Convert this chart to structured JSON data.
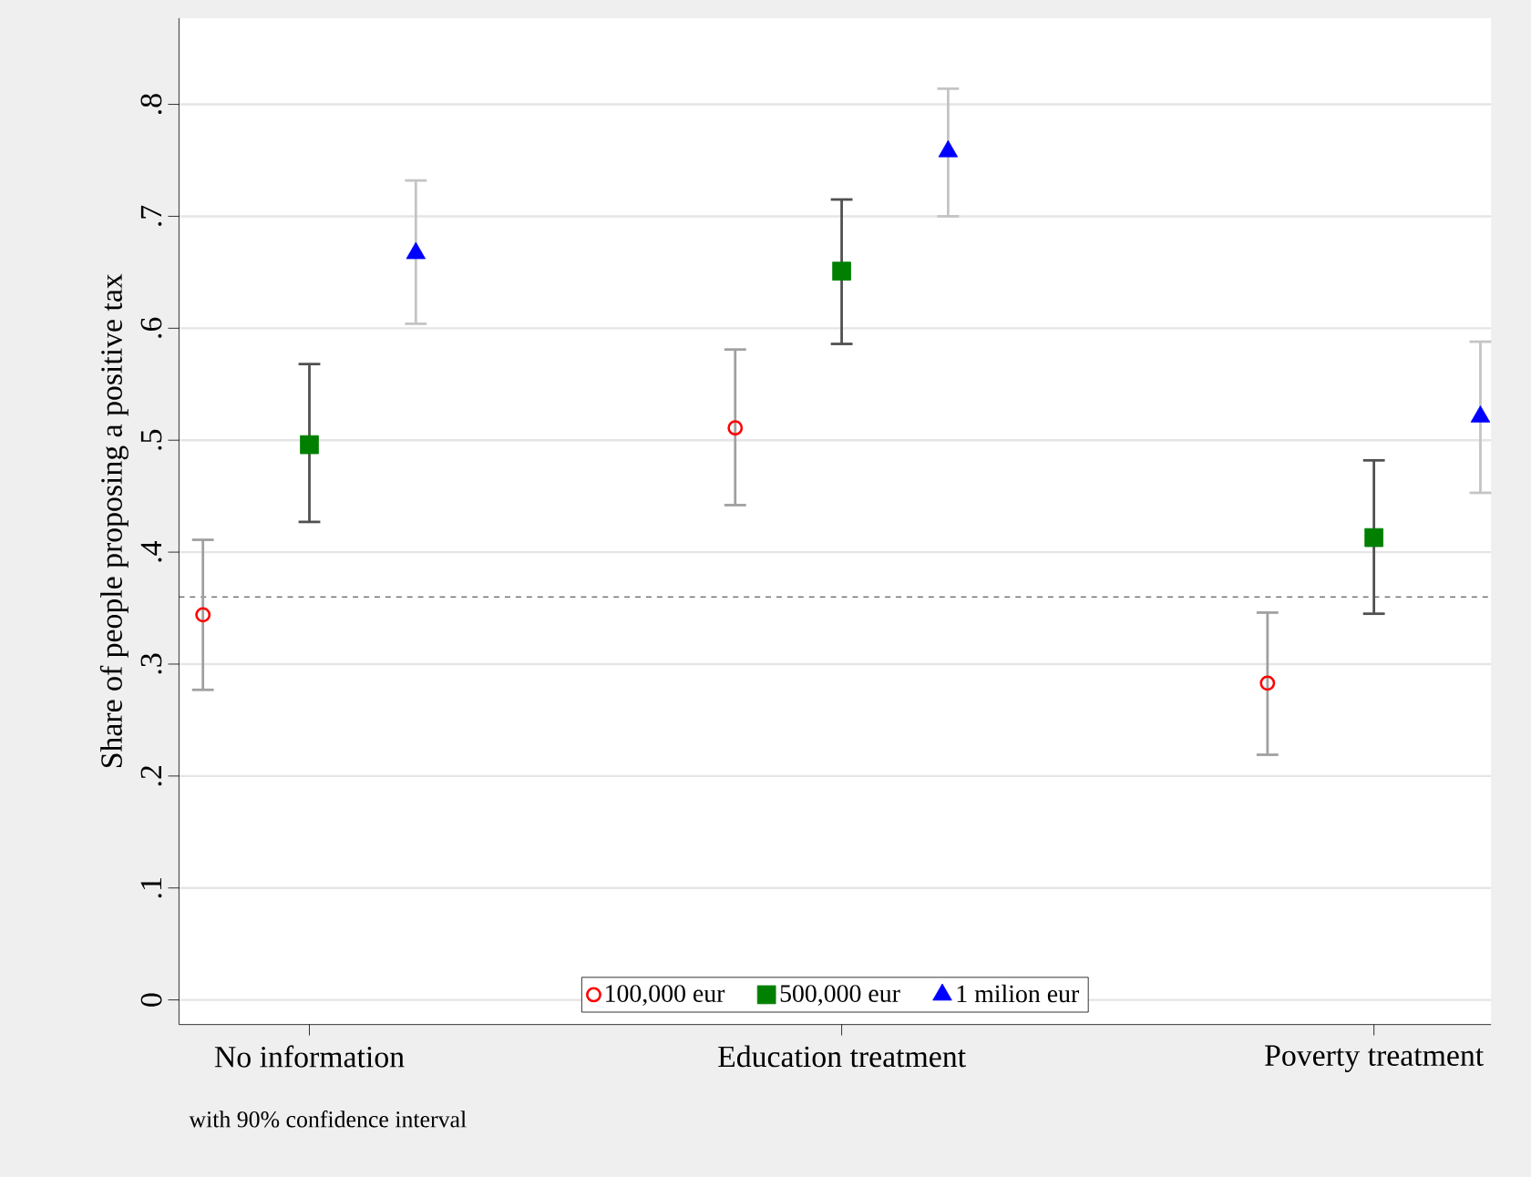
{
  "chart_data": {
    "type": "scatter",
    "ylabel": "Share of people proposing a positive tax",
    "categories": [
      "No information",
      "Education treatment",
      "Poverty treatment"
    ],
    "series": [
      {
        "name": "100,000 eur",
        "color": "#ff0000",
        "marker": "circle",
        "values": [
          0.344,
          0.511,
          0.283
        ],
        "errors": [
          [
            0.277,
            0.411
          ],
          [
            0.442,
            0.581
          ],
          [
            0.219,
            0.346
          ]
        ]
      },
      {
        "name": "500,000 eur",
        "color": "#007f00",
        "marker": "square",
        "values": [
          0.496,
          0.651,
          0.413
        ],
        "errors": [
          [
            0.427,
            0.568
          ],
          [
            0.586,
            0.715
          ],
          [
            0.345,
            0.482
          ]
        ]
      },
      {
        "name": "1 milion eur",
        "color": "#0000ff",
        "marker": "triangle",
        "values": [
          0.667,
          0.758,
          0.521
        ],
        "errors": [
          [
            0.604,
            0.732
          ],
          [
            0.7,
            0.814
          ],
          [
            0.453,
            0.588
          ]
        ]
      }
    ],
    "ylim": [
      -0.022,
      0.877
    ],
    "yticks": [
      {
        "value": 0,
        "label": "0"
      },
      {
        "value": 0.1,
        "label": ".1"
      },
      {
        "value": 0.2,
        "label": ".2"
      },
      {
        "value": 0.3,
        "label": ".3"
      },
      {
        "value": 0.4,
        "label": ".4"
      },
      {
        "value": 0.5,
        "label": ".5"
      },
      {
        "value": 0.6,
        "label": ".6"
      },
      {
        "value": 0.7,
        "label": ".7"
      },
      {
        "value": 0.8,
        "label": ".8"
      }
    ],
    "ref_lines": [
      {
        "axis": "y",
        "value": 0.36,
        "line_style": "dashed",
        "color": "#000000"
      }
    ],
    "grid": "y",
    "legend": "bottom",
    "annotations": [
      "with 90% confidence interval"
    ]
  }
}
